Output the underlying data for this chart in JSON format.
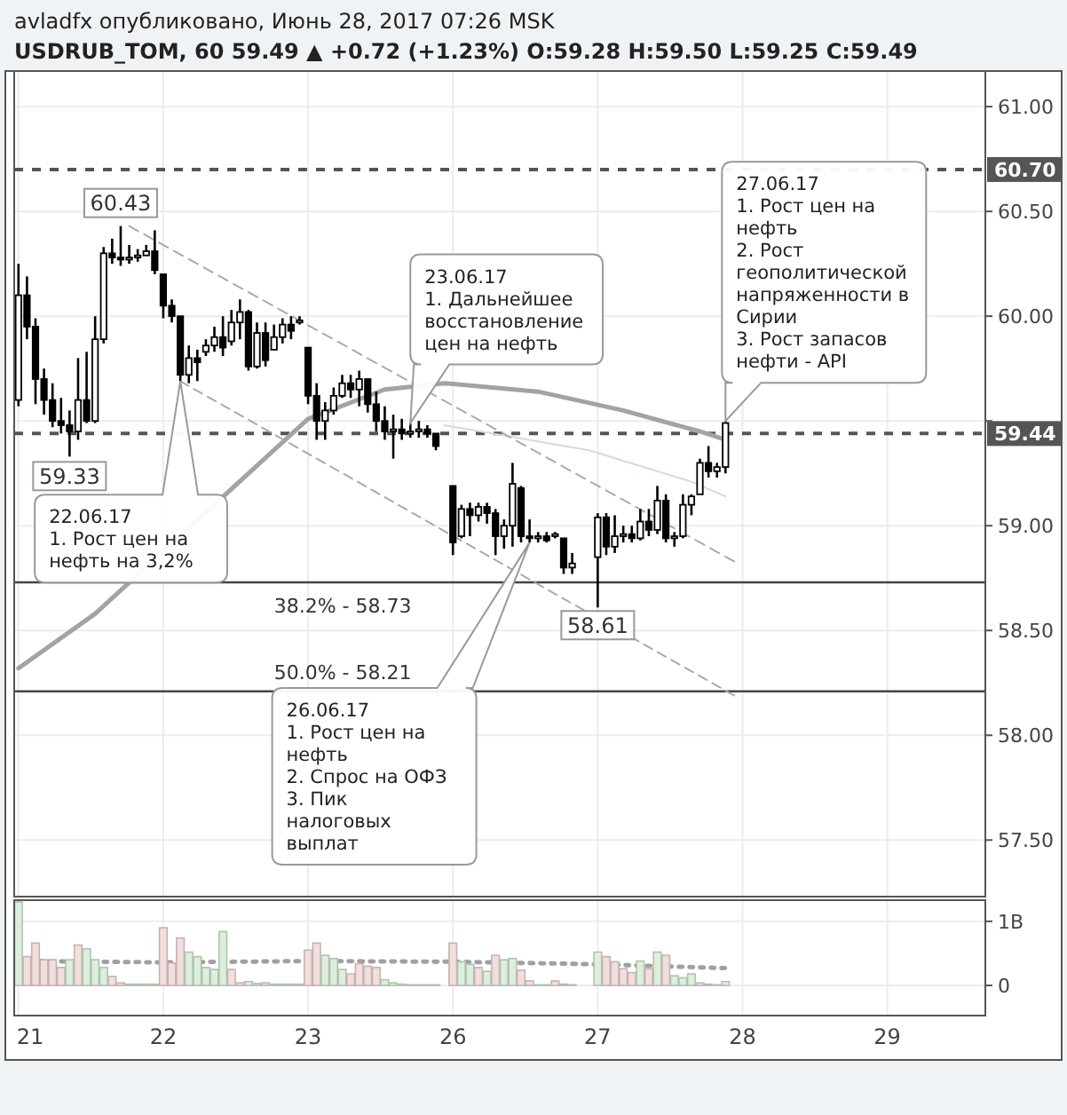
{
  "chart_data": [
    {
      "type": "candlestick",
      "title": "avladfx опубликовано, Июнь 28, 2017 07:26 MSK",
      "subtitle": "USDRUB_TOM, 60  59.49 ▲ +0.72 (+1.23%)  O:59.28 H:59.50 L:59.25 C:59.49",
      "color": "#000000",
      "categories": [
        "21",
        null,
        null,
        null,
        null,
        null,
        null,
        null,
        null,
        null,
        null,
        null,
        null,
        null,
        null,
        null,
        null,
        "22",
        null,
        null,
        null,
        null,
        null,
        null,
        null,
        null,
        null,
        null,
        null,
        null,
        null,
        null,
        null,
        null,
        "23",
        null,
        null,
        null,
        null,
        null,
        null,
        null,
        null,
        null,
        null,
        null,
        null,
        null,
        null,
        null,
        null,
        "26",
        null,
        null,
        null,
        null,
        null,
        null,
        null,
        null,
        null,
        null,
        null,
        null,
        null,
        null,
        null,
        null,
        "27",
        null,
        null,
        null,
        null,
        null,
        null,
        null,
        null,
        null,
        null,
        null,
        null,
        null,
        null,
        null,
        null,
        "28",
        null,
        null,
        null,
        null,
        null,
        null,
        null,
        null,
        null,
        null,
        null,
        null,
        null,
        null,
        null,
        null,
        "29",
        null,
        null,
        null,
        null,
        null,
        null,
        null,
        null,
        null,
        null,
        null
      ],
      "ohlc": [
        [
          59.6,
          60.25,
          59.57,
          60.1
        ],
        [
          60.1,
          60.19,
          59.89,
          59.95
        ],
        [
          59.95,
          59.99,
          59.58,
          59.7
        ],
        [
          59.7,
          59.75,
          59.53,
          59.6
        ],
        [
          59.6,
          59.68,
          59.47,
          59.5
        ],
        [
          59.5,
          59.61,
          59.44,
          59.48
        ],
        [
          59.48,
          59.55,
          59.33,
          59.45
        ],
        [
          59.45,
          59.8,
          59.41,
          59.6
        ],
        [
          59.6,
          59.83,
          59.49,
          59.5
        ],
        [
          59.5,
          60.0,
          59.49,
          59.89
        ],
        [
          59.89,
          60.33,
          59.87,
          60.3
        ],
        [
          60.3,
          60.37,
          60.25,
          60.28
        ],
        [
          60.28,
          60.43,
          60.24,
          60.27
        ],
        [
          60.27,
          60.34,
          60.25,
          60.28
        ],
        [
          60.28,
          60.32,
          60.26,
          60.29
        ],
        [
          60.29,
          60.34,
          60.29,
          60.31
        ],
        [
          60.31,
          60.41,
          60.2,
          60.22
        ],
        [
          60.2,
          60.2,
          59.99,
          60.05
        ],
        [
          60.05,
          60.08,
          59.97,
          60.0
        ],
        [
          60.0,
          60.0,
          59.69,
          59.72
        ],
        [
          59.72,
          59.86,
          59.68,
          59.8
        ],
        [
          59.8,
          59.84,
          59.69,
          59.78
        ],
        [
          59.83,
          59.89,
          59.81,
          59.86
        ],
        [
          59.86,
          59.95,
          59.83,
          59.9
        ],
        [
          59.9,
          60.0,
          59.81,
          59.85
        ],
        [
          59.88,
          60.03,
          59.86,
          59.97
        ],
        [
          59.97,
          60.08,
          59.89,
          60.02
        ],
        [
          60.02,
          60.03,
          59.74,
          59.76
        ],
        [
          59.76,
          59.97,
          59.75,
          59.92
        ],
        [
          59.92,
          59.97,
          59.76,
          59.79
        ],
        [
          59.84,
          59.96,
          59.84,
          59.9
        ],
        [
          59.9,
          59.99,
          59.87,
          59.96
        ],
        [
          59.96,
          60.0,
          59.89,
          59.93
        ],
        [
          59.97,
          60.0,
          59.96,
          59.98
        ],
        [
          59.85,
          59.85,
          59.58,
          59.62
        ],
        [
          59.62,
          59.68,
          59.41,
          59.5
        ],
        [
          59.5,
          59.59,
          59.41,
          59.55
        ],
        [
          59.55,
          59.66,
          59.53,
          59.62
        ],
        [
          59.62,
          59.72,
          59.61,
          59.68
        ],
        [
          59.68,
          59.72,
          59.61,
          59.65
        ],
        [
          59.65,
          59.74,
          59.57,
          59.7
        ],
        [
          59.7,
          59.7,
          59.54,
          59.58
        ],
        [
          59.58,
          59.64,
          59.45,
          59.5
        ],
        [
          59.5,
          59.57,
          59.41,
          59.45
        ],
        [
          59.45,
          59.53,
          59.32,
          59.46
        ],
        [
          59.46,
          59.51,
          59.41,
          59.44
        ],
        [
          59.44,
          59.49,
          59.42,
          59.45
        ],
        [
          59.45,
          59.5,
          59.42,
          59.46
        ],
        [
          59.46,
          59.48,
          59.42,
          59.44
        ],
        [
          59.44,
          59.44,
          59.36,
          59.38
        ],
        null,
        [
          59.19,
          59.19,
          58.86,
          58.92
        ],
        [
          58.95,
          59.1,
          58.94,
          59.08
        ],
        [
          59.08,
          59.11,
          58.95,
          59.05
        ],
        [
          59.05,
          59.11,
          59.02,
          59.09
        ],
        [
          59.09,
          59.11,
          59.01,
          59.06
        ],
        [
          59.06,
          59.08,
          58.86,
          58.95
        ],
        [
          58.95,
          59.03,
          58.89,
          59.0
        ],
        [
          59.0,
          59.3,
          58.9,
          59.2
        ],
        [
          59.18,
          59.19,
          58.92,
          58.95
        ],
        [
          58.95,
          59.03,
          58.92,
          58.94
        ],
        [
          58.94,
          58.97,
          58.92,
          58.95
        ],
        [
          58.95,
          58.97,
          58.92,
          58.93
        ],
        [
          58.95,
          58.97,
          58.94,
          58.96
        ],
        [
          58.94,
          58.94,
          58.77,
          58.8
        ],
        [
          58.8,
          58.87,
          58.77,
          58.82
        ],
        null,
        null,
        [
          58.85,
          59.06,
          58.61,
          59.04
        ],
        [
          59.04,
          59.06,
          58.86,
          58.9
        ],
        [
          58.9,
          59.05,
          58.87,
          58.95
        ],
        [
          58.95,
          59.0,
          58.92,
          58.96
        ],
        [
          58.96,
          59.0,
          58.92,
          58.94
        ],
        [
          58.94,
          59.08,
          58.93,
          59.02
        ],
        [
          59.02,
          59.08,
          58.95,
          58.98
        ],
        [
          58.98,
          59.19,
          58.96,
          59.12
        ],
        [
          59.12,
          59.15,
          58.92,
          58.94
        ],
        [
          58.94,
          58.97,
          58.9,
          58.95
        ],
        [
          58.95,
          59.15,
          58.94,
          59.1
        ],
        [
          59.1,
          59.15,
          59.05,
          59.14
        ],
        [
          59.15,
          59.32,
          59.15,
          59.3
        ],
        [
          59.3,
          59.38,
          59.23,
          59.26
        ],
        [
          59.26,
          59.3,
          59.23,
          59.28
        ],
        [
          59.28,
          59.5,
          59.25,
          59.49
        ],
        null,
        null,
        null,
        null,
        null,
        null,
        null,
        null,
        null,
        null,
        null,
        null,
        null,
        null,
        null,
        null,
        null,
        null,
        null,
        null,
        null,
        null,
        null,
        null,
        null,
        null,
        null,
        null,
        null,
        null
      ],
      "series": [
        {
          "type": "line",
          "color": "#a3a3a3",
          "values": [
            58.32,
            null,
            null,
            null,
            null,
            null,
            null,
            null,
            null,
            58.58,
            null,
            null,
            null,
            null,
            null,
            null,
            null,
            null,
            null,
            null,
            null,
            null,
            null,
            null,
            null,
            null,
            null,
            null,
            null,
            null,
            null,
            null,
            null,
            null,
            59.51,
            null,
            null,
            null,
            null,
            null,
            null,
            null,
            null,
            59.65,
            null,
            null,
            null,
            null,
            null,
            null,
            59.68,
            null,
            null,
            null,
            null,
            null,
            null,
            null,
            null,
            null,
            null,
            59.64,
            null,
            null,
            null,
            null,
            null,
            null,
            null,
            null,
            null,
            59.55,
            null,
            null,
            null,
            null,
            null,
            null,
            null,
            null,
            59.45,
            null,
            null,
            59.41,
            null,
            null,
            null,
            null,
            null,
            null,
            null,
            null,
            null,
            null,
            null,
            null,
            null,
            null,
            null,
            null,
            null,
            null,
            null,
            null,
            null,
            null,
            null,
            null,
            null,
            null,
            null,
            null,
            null,
            null
          ]
        },
        {
          "type": "line",
          "color": "#d6d6ea",
          "values": [
            null,
            null,
            null,
            null,
            null,
            null,
            null,
            null,
            null,
            null,
            null,
            null,
            null,
            null,
            null,
            null,
            null,
            null,
            null,
            null,
            null,
            null,
            null,
            null,
            null,
            null,
            null,
            null,
            null,
            null,
            null,
            null,
            null,
            null,
            null,
            null,
            null,
            null,
            null,
            null,
            null,
            null,
            null,
            null,
            null,
            null,
            null,
            null,
            null,
            null,
            59.48,
            null,
            null,
            null,
            null,
            null,
            null,
            null,
            null,
            null,
            null,
            null,
            null,
            null,
            null,
            null,
            null,
            59.36,
            null,
            null,
            null,
            null,
            null,
            null,
            null,
            null,
            null,
            null,
            null,
            59.21,
            null,
            null,
            null,
            59.14,
            null,
            null,
            null,
            null,
            null,
            null,
            null,
            null,
            null,
            null,
            null,
            null,
            null,
            null,
            null,
            null,
            null,
            null,
            null,
            null,
            null,
            null,
            null,
            null,
            null,
            null,
            null,
            null,
            null,
            null
          ]
        },
        {
          "type": "line",
          "color": "#aaaaaa",
          "line_style": "dashed",
          "values": [
            null,
            null,
            null,
            null,
            null,
            null,
            null,
            null,
            null,
            null,
            null,
            null,
            null,
            60.43,
            null,
            null,
            null,
            null,
            null,
            null,
            null,
            null,
            null,
            null,
            null,
            null,
            null,
            null,
            null,
            null,
            null,
            null,
            null,
            null,
            null,
            null,
            null,
            null,
            null,
            null,
            null,
            null,
            null,
            null,
            null,
            null,
            null,
            null,
            null,
            null,
            null,
            null,
            null,
            null,
            null,
            null,
            null,
            null,
            null,
            null,
            null,
            null,
            null,
            null,
            null,
            null,
            null,
            null,
            null,
            null,
            null,
            null,
            null,
            null,
            null,
            null,
            null,
            null,
            null,
            null,
            null,
            null,
            null,
            null,
            58.83,
            null,
            null,
            null,
            null,
            null,
            null,
            null,
            null,
            null,
            null,
            null,
            null,
            null,
            null,
            null,
            null,
            null,
            null,
            null,
            null,
            null,
            null,
            null,
            null,
            null,
            null,
            null,
            null,
            null
          ]
        },
        {
          "type": "line",
          "color": "#aaaaaa",
          "line_style": "dashed",
          "values": [
            null,
            null,
            null,
            null,
            null,
            null,
            null,
            null,
            null,
            null,
            null,
            null,
            null,
            null,
            null,
            null,
            null,
            null,
            null,
            59.69,
            null,
            null,
            null,
            null,
            null,
            null,
            null,
            null,
            null,
            null,
            null,
            null,
            null,
            null,
            null,
            null,
            null,
            null,
            null,
            null,
            null,
            null,
            null,
            null,
            null,
            null,
            null,
            null,
            null,
            null,
            null,
            null,
            null,
            null,
            null,
            null,
            null,
            null,
            null,
            null,
            null,
            null,
            null,
            null,
            null,
            null,
            null,
            null,
            null,
            null,
            null,
            null,
            null,
            null,
            null,
            null,
            null,
            null,
            null,
            null,
            null,
            null,
            null,
            null,
            58.19,
            null,
            null,
            null,
            null,
            null,
            null,
            null,
            null,
            null,
            null,
            null,
            null,
            null,
            null,
            null,
            null,
            null,
            null,
            null,
            null,
            null,
            null,
            null,
            null,
            null,
            null,
            null,
            null,
            null
          ]
        }
      ],
      "ylim": [
        57.23,
        61.17
      ],
      "yticks": [
        {
          "value": 57.5,
          "label": "57.50"
        },
        {
          "value": 58,
          "label": "58.00"
        },
        {
          "value": 58.5,
          "label": "58.50"
        },
        {
          "value": 59,
          "label": "59.00"
        },
        {
          "value": 59.5,
          "label": null
        },
        {
          "value": 60,
          "label": "60.00"
        },
        {
          "value": 60.5,
          "label": "60.50"
        },
        {
          "value": 61,
          "label": "61.00"
        }
      ],
      "grid": true,
      "tick_labels": "y",
      "ref_lines": [
        {
          "axis": "y",
          "value": 60.7,
          "label": "60.70",
          "color": "#555555",
          "line_style": "dashed"
        },
        {
          "axis": "y",
          "value": 59.44,
          "label": "59.44",
          "color": "#555555",
          "line_style": "dashed"
        },
        {
          "axis": "y",
          "value": 58.73,
          "color": "#444444",
          "line_style": "solid"
        },
        {
          "axis": "y",
          "value": 58.21,
          "color": "#444444",
          "line_style": "solid"
        }
      ],
      "annotations": [
        {
          "text": "60.43",
          "y": 60.43
        },
        {
          "text": "59.33",
          "y": 59.33
        },
        {
          "text": "58.61",
          "y": 58.61
        },
        {
          "text": "38.2% - 58.73",
          "y": 58.73
        },
        {
          "text": "50.0% - 58.21",
          "y": 58.21
        },
        "22.06.17\n1. Рост цен на\nнефть на 3,2%",
        "23.06.17\n1. Дальнейшее\nвосстановление\nцен на нефть",
        "26.06.17\n1. Рост цен на\nнефть\n2. Спрос на ОФЗ\n3. Пик\nналоговых\nвыплат",
        "27.06.17\n1. Рост цен на\nнефть\n2. Рост\nгеополитической\nнапряженности в\nСирии\n3. Рост запасов\nнефти - API"
      ]
    },
    {
      "type": "bar",
      "categories": [
        "21",
        null,
        null,
        null,
        null,
        null,
        null,
        null,
        null,
        null,
        null,
        null,
        null,
        null,
        null,
        null,
        null,
        "22",
        null,
        null,
        null,
        null,
        null,
        null,
        null,
        null,
        null,
        null,
        null,
        null,
        null,
        null,
        null,
        null,
        "23",
        null,
        null,
        null,
        null,
        null,
        null,
        null,
        null,
        null,
        null,
        null,
        null,
        null,
        null,
        null,
        null,
        "26",
        null,
        null,
        null,
        null,
        null,
        null,
        null,
        null,
        null,
        null,
        null,
        null,
        null,
        null,
        null,
        null,
        "27",
        null,
        null,
        null,
        null,
        null,
        null,
        null,
        null,
        null,
        null,
        null,
        null,
        null,
        null,
        null,
        null,
        "28",
        null,
        null,
        null,
        null,
        null,
        null,
        null,
        null,
        null,
        null,
        null,
        null,
        null,
        null,
        null,
        null,
        "29",
        null,
        null,
        null,
        null,
        null,
        null,
        null,
        null,
        null,
        null,
        null
      ],
      "values": [
        1.3,
        0.45,
        0.66,
        0.4,
        0.4,
        0.28,
        0.4,
        0.63,
        0.57,
        0.4,
        0.28,
        0.14,
        0.04,
        0.02,
        0.02,
        0.02,
        0.02,
        0.9,
        0.35,
        0.74,
        0.52,
        0.45,
        0.28,
        0.25,
        0.84,
        0.25,
        0.04,
        0.06,
        0.03,
        0.04,
        0.02,
        0.02,
        0.02,
        0.02,
        0.55,
        0.66,
        0.47,
        0.42,
        0.25,
        0.18,
        0.34,
        0.3,
        0.28,
        0.09,
        0.04,
        0.02,
        0.01,
        0.01,
        0.01,
        0.01,
        null,
        0.66,
        0.37,
        0.33,
        0.28,
        0.22,
        0.47,
        0.4,
        0.42,
        0.24,
        0.07,
        0.01,
        0.01,
        0.07,
        0.02,
        0.01,
        null,
        null,
        0.52,
        0.45,
        0.37,
        0.26,
        0.2,
        0.38,
        0.26,
        0.52,
        0.47,
        0.15,
        0.12,
        0.18,
        0.04,
        0.02,
        0.01,
        0.06,
        null,
        null,
        null,
        null,
        null,
        null,
        null,
        null,
        null,
        null,
        null,
        null,
        null,
        null,
        null,
        null,
        null,
        null,
        null,
        null,
        null,
        null,
        null,
        null,
        null,
        null,
        null,
        null,
        null,
        null
      ],
      "colors": [
        "#dcefdc",
        "#f3dede",
        "#f3dede",
        "#f3dede",
        "#f3dede",
        "#f3dede",
        "#dcefdc",
        "#f3dede",
        "#dcefdc",
        "#dcefdc",
        "#dcefdc",
        "#f3dede",
        "#f3dede",
        "#dcefdc",
        "#dcefdc",
        "#dcefdc",
        "#dcefdc",
        "#f3dede",
        "#f3dede",
        "#f3dede",
        "#dcefdc",
        "#dcefdc",
        "#dcefdc",
        "#dcefdc",
        "#dcefdc",
        "#f3dede",
        "#f3dede",
        "#dcefdc",
        "#dcefdc",
        "#f3dede",
        "#dcefdc",
        "#dcefdc",
        "#dcefdc",
        "#dcefdc",
        "#f3dede",
        "#f3dede",
        "#dcefdc",
        "#dcefdc",
        "#dcefdc",
        "#f3dede",
        "#f3dede",
        "#f3dede",
        "#f3dede",
        "#dcefdc",
        "#dcefdc",
        "#dcefdc",
        "#f3dede",
        "#f3dede",
        "#f3dede",
        "#f3dede",
        null,
        "#f3dede",
        "#dcefdc",
        "#dcefdc",
        "#f3dede",
        "#dcefdc",
        "#f3dede",
        "#dcefdc",
        "#dcefdc",
        "#f3dede",
        "#f3dede",
        "#dcefdc",
        "#dcefdc",
        "#f3dede",
        "#f3dede",
        "#f3dede",
        null,
        null,
        "#dcefdc",
        "#f3dede",
        "#f3dede",
        "#f3dede",
        "#f3dede",
        "#dcefdc",
        "#f3dede",
        "#dcefdc",
        "#f3dede",
        "#dcefdc",
        "#dcefdc",
        "#dcefdc",
        "#f3dede",
        "#f3dede",
        "#dcefdc",
        "#dcefdc",
        null,
        null,
        null,
        null,
        null,
        null,
        null,
        null,
        null,
        null,
        null,
        null,
        null,
        null,
        null,
        null,
        null,
        null,
        null,
        null,
        null,
        null,
        null,
        null,
        null,
        null,
        null,
        null,
        null,
        null
      ],
      "series": [
        {
          "type": "line",
          "color": "#a0a0a0",
          "line_style": "dotted",
          "values": [
            0.38,
            null,
            null,
            null,
            null,
            null,
            null,
            null,
            null,
            null,
            null,
            null,
            null,
            null,
            null,
            null,
            null,
            0.36,
            null,
            null,
            null,
            null,
            null,
            null,
            null,
            null,
            null,
            null,
            null,
            null,
            null,
            null,
            null,
            null,
            0.38,
            null,
            null,
            null,
            null,
            null,
            null,
            null,
            null,
            null,
            null,
            null,
            null,
            null,
            null,
            null,
            null,
            0.37,
            null,
            null,
            null,
            null,
            null,
            null,
            null,
            null,
            null,
            null,
            null,
            null,
            null,
            null,
            null,
            null,
            0.33,
            null,
            null,
            null,
            null,
            null,
            null,
            null,
            null,
            null,
            null,
            null,
            null,
            null,
            null,
            0.27,
            null,
            null,
            null,
            null,
            null,
            null,
            null,
            null,
            null,
            null,
            null,
            null,
            null,
            null,
            null,
            null,
            null,
            null,
            null,
            null,
            null,
            null,
            null,
            null,
            null,
            null,
            null,
            null,
            null,
            null
          ]
        }
      ],
      "ylim": [
        -0.47,
        1.33
      ],
      "yticks": [
        {
          "value": 0,
          "label": "0"
        },
        {
          "value": 1,
          "label": "1B"
        }
      ],
      "grid": true
    }
  ]
}
